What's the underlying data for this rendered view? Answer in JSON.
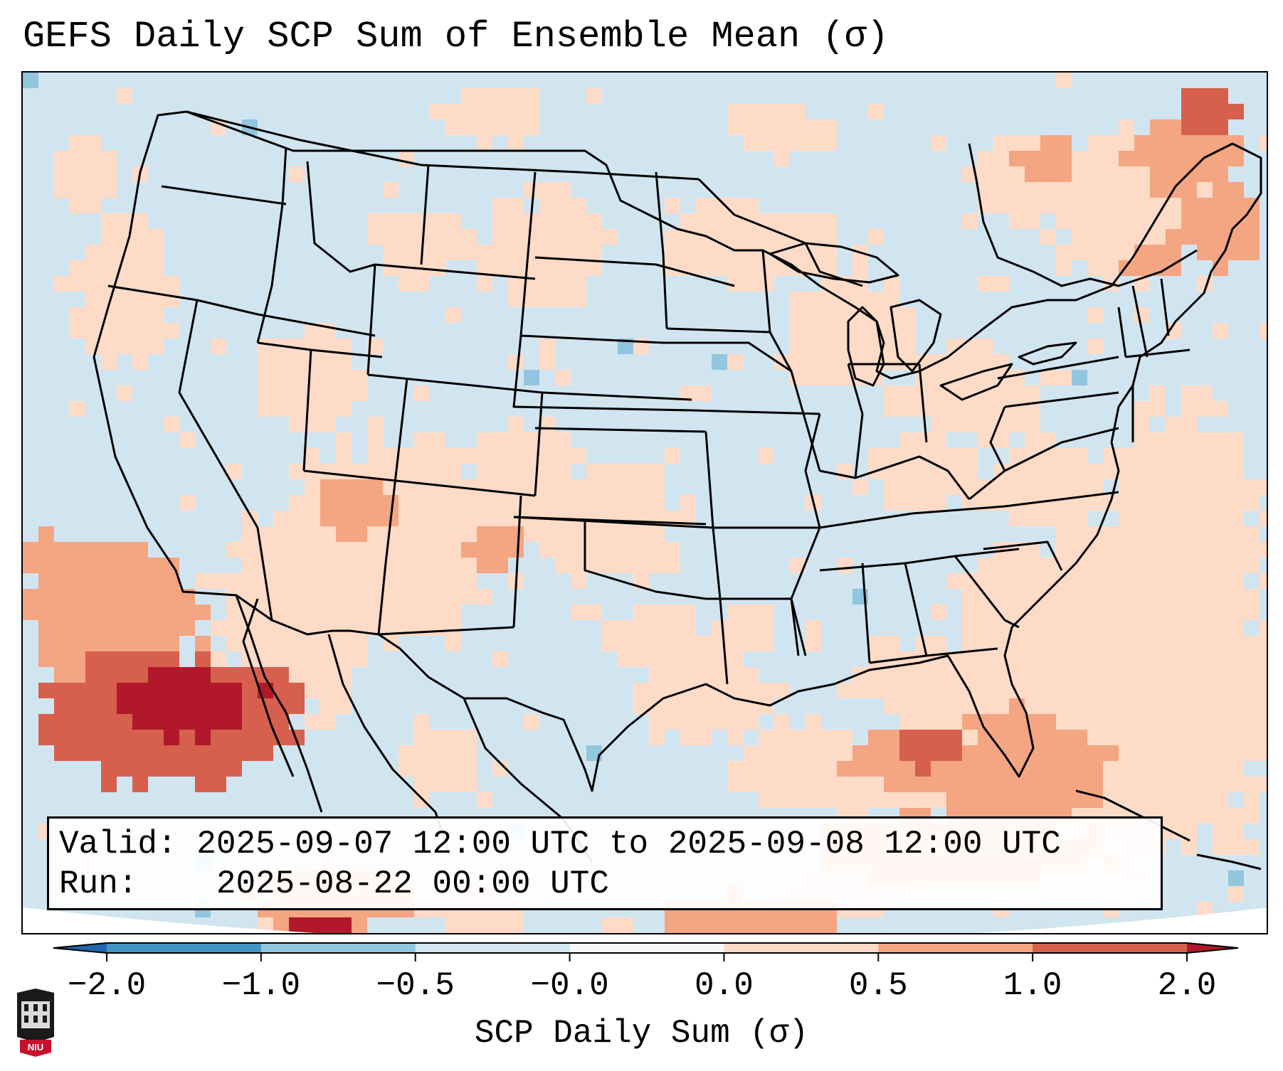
{
  "title": "GEFS Daily SCP Sum of Ensemble Mean (σ)",
  "info": {
    "valid_label": "Valid:",
    "valid_value": "2025-09-07 12:00 UTC to 2025-09-08 12:00 UTC",
    "run_label": "Run:",
    "run_value": "2025-08-22 00:00 UTC"
  },
  "colorbar": {
    "label": "SCP Daily Sum (σ)",
    "ticks": [
      "−2.0",
      "−1.0",
      "−0.5",
      "−0.0",
      "0.0",
      "0.5",
      "1.0",
      "2.0"
    ],
    "bins": [
      {
        "from": "-2.0",
        "to": "-1.0",
        "color": "#4393c3"
      },
      {
        "from": "-1.0",
        "to": "-0.5",
        "color": "#92c5de"
      },
      {
        "from": "-0.5",
        "to": "-0.0",
        "color": "#d1e5f0"
      },
      {
        "from": "-0.0",
        "to": "0.0",
        "color": "#f7f7f7"
      },
      {
        "from": "0.0",
        "to": "0.5",
        "color": "#fddbc7"
      },
      {
        "from": "0.5",
        "to": "1.0",
        "color": "#f4a582"
      },
      {
        "from": "1.0",
        "to": "2.0",
        "color": "#d6604d"
      }
    ],
    "under_color": "#2166ac",
    "over_color": "#b2182b"
  },
  "map": {
    "region": "Continental United States",
    "background_color": "#d1e5f0"
  },
  "logo": {
    "text": "NIU"
  }
}
